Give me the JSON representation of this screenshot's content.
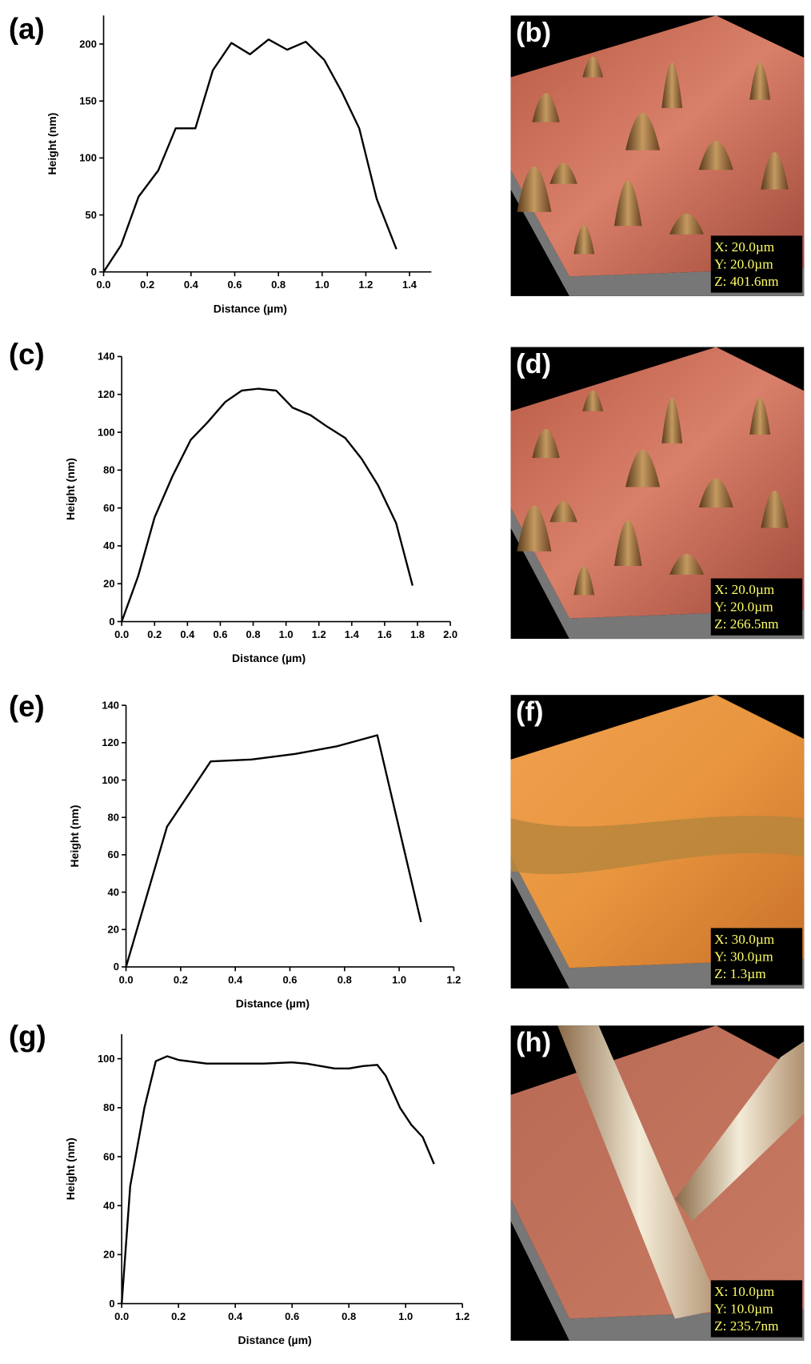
{
  "chart_data": [
    {
      "type": "line",
      "panel_label": "(a)",
      "x_label": "Distance (µm)",
      "y_label": "Height (nm)",
      "x": [
        0,
        0.08,
        0.16,
        0.25,
        0.33,
        0.42,
        0.5,
        0.585,
        0.67,
        0.755,
        0.84,
        0.925,
        1.01,
        1.09,
        1.17,
        1.25,
        1.34
      ],
      "values": [
        0,
        23.5,
        66,
        89,
        126,
        126,
        177,
        201,
        191,
        204,
        195,
        202,
        186,
        158,
        126,
        64,
        20
      ],
      "color": "#000000",
      "xlim": [
        0,
        1.5
      ],
      "ylim": [
        0,
        225
      ],
      "xticks": [
        {
          "value": 0,
          "label": "0.0"
        },
        0.2,
        0.4,
        0.6,
        0.8,
        {
          "value": 1,
          "label": "1.0"
        },
        1.2,
        1.4
      ],
      "yticks": [
        0,
        50,
        100,
        150,
        200
      ]
    },
    {
      "type": "line",
      "panel_label": "(c)",
      "x_label": "Distance (µm)",
      "y_label": "Height (nm)",
      "x": [
        0,
        0.1,
        0.2,
        0.31,
        0.42,
        0.52,
        0.63,
        0.73,
        0.83,
        0.94,
        1.04,
        1.15,
        1.25,
        1.36,
        1.46,
        1.56,
        1.67,
        1.77
      ],
      "values": [
        0,
        24,
        55,
        77,
        96,
        105,
        116,
        122,
        123,
        122,
        113,
        109,
        103,
        97,
        86,
        72,
        52,
        19
      ],
      "color": "#000000",
      "xlim": [
        0,
        2
      ],
      "ylim": [
        0,
        140
      ],
      "xticks": [
        {
          "value": 0,
          "label": "0.0"
        },
        0.2,
        0.4,
        0.6,
        0.8,
        {
          "value": 1,
          "label": "1.0"
        },
        1.2,
        1.4,
        1.6,
        1.8,
        {
          "value": 2,
          "label": "2.0"
        }
      ],
      "yticks": [
        0,
        20,
        40,
        60,
        80,
        100,
        120,
        140
      ]
    },
    {
      "type": "line",
      "panel_label": "(e)",
      "x_label": "Distance (µm)",
      "y_label": "Height (nm)",
      "x": [
        0,
        0.15,
        0.31,
        0.46,
        0.62,
        0.77,
        0.92,
        1.08
      ],
      "values": [
        0,
        75,
        110,
        111,
        114,
        118,
        124,
        24
      ],
      "color": "#000000",
      "xlim": [
        0,
        1.2
      ],
      "ylim": [
        0,
        140
      ],
      "xticks": [
        {
          "value": 0,
          "label": "0.0"
        },
        0.2,
        0.4,
        0.6,
        0.8,
        {
          "value": 1,
          "label": "1.0"
        },
        1.2
      ],
      "yticks": [
        0,
        20,
        40,
        60,
        80,
        100,
        120,
        140
      ]
    },
    {
      "type": "line",
      "panel_label": "(g)",
      "x_label": "Distance (µm)",
      "y_label": "Height (nm)",
      "x": [
        0,
        0.03,
        0.08,
        0.12,
        0.16,
        0.2,
        0.3,
        0.4,
        0.5,
        0.6,
        0.65,
        0.75,
        0.8,
        0.85,
        0.9,
        0.93,
        0.98,
        1.02,
        1.06,
        1.1
      ],
      "values": [
        0,
        48,
        80,
        99,
        101,
        99.5,
        98,
        98,
        98,
        98.5,
        98,
        96,
        96,
        97,
        97.5,
        93,
        80,
        73,
        68,
        57
      ],
      "color": "#000000",
      "xlim": [
        0,
        1.2
      ],
      "ylim": [
        0,
        110
      ],
      "xticks": [
        {
          "value": 0,
          "label": "0.0"
        },
        0.2,
        0.4,
        0.6,
        0.8,
        {
          "value": 1,
          "label": "1.0"
        },
        1.2
      ],
      "yticks": [
        0,
        20,
        40,
        60,
        80,
        100
      ]
    }
  ],
  "images": [
    {
      "label": "(b)",
      "scan": [
        "X: 20.0µm",
        "Y: 20.0µm",
        "Z: 401.6nm"
      ]
    },
    {
      "label": "(d)",
      "scan": [
        "X: 20.0µm",
        "Y: 20.0µm",
        "Z: 266.5nm"
      ]
    },
    {
      "label": "(f)",
      "scan": [
        "X: 30.0µm",
        "Y: 30.0µm",
        "Z: 1.3µm"
      ]
    },
    {
      "label": "(h)",
      "scan": [
        "X: 10.0µm",
        "Y: 10.0µm",
        "Z: 235.7nm"
      ]
    }
  ]
}
